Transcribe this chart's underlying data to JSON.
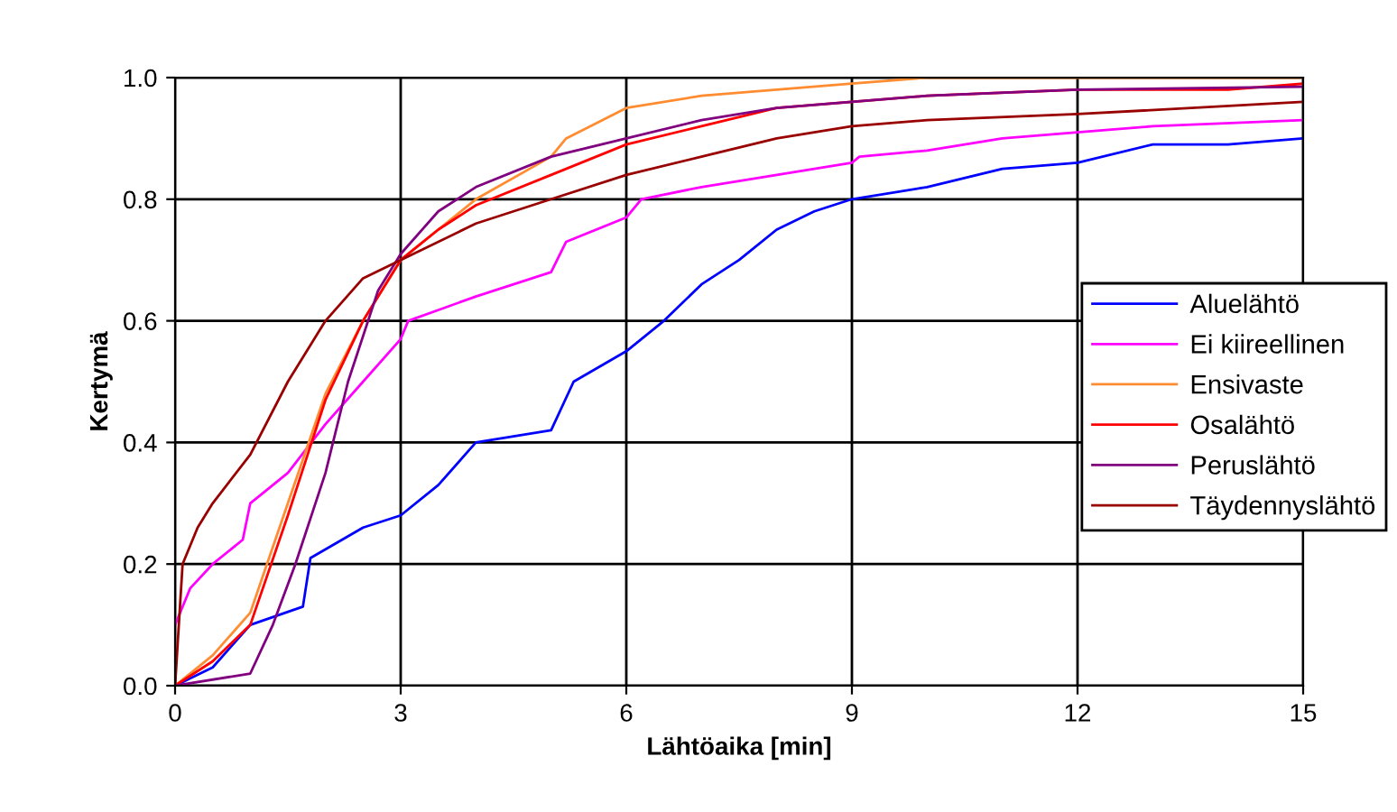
{
  "chart_data": {
    "type": "line",
    "xlabel": "Lähtöaika [min]",
    "ylabel": "Kertymä",
    "xlim": [
      0,
      15
    ],
    "ylim": [
      0,
      1.0
    ],
    "xticks": [
      0,
      3,
      6,
      9,
      12,
      15
    ],
    "yticks": [
      {
        "value": 0,
        "label": "0.0"
      },
      {
        "value": 0.2,
        "label": "0.2"
      },
      {
        "value": 0.4,
        "label": "0.4"
      },
      {
        "value": 0.6,
        "label": "0.6"
      },
      {
        "value": 0.8,
        "label": "0.8"
      },
      {
        "value": 1.0,
        "label": "1.0"
      }
    ],
    "grid": true,
    "legend": "right",
    "line_style": "solid",
    "marker": "none",
    "series": [
      {
        "name": "Aluelähtö",
        "color": "#0000ff",
        "x": [
          0,
          0.5,
          1,
          1.7,
          1.8,
          2.5,
          3,
          3.5,
          4,
          5,
          5.3,
          6,
          6.5,
          7,
          7.5,
          8,
          8.5,
          9,
          10,
          11,
          12,
          13,
          14,
          15
        ],
        "values": [
          0,
          0.03,
          0.1,
          0.13,
          0.21,
          0.26,
          0.28,
          0.33,
          0.4,
          0.42,
          0.5,
          0.55,
          0.6,
          0.66,
          0.7,
          0.75,
          0.78,
          0.8,
          0.82,
          0.85,
          0.86,
          0.89,
          0.89,
          0.9
        ]
      },
      {
        "name": "Ei kiireellinen",
        "color": "#ff00ff",
        "x": [
          0,
          0.2,
          0.5,
          0.9,
          1,
          1.5,
          2,
          2.5,
          3,
          3.1,
          4,
          5,
          5.2,
          6,
          6.2,
          7,
          8,
          9,
          9.1,
          10,
          11,
          12,
          13,
          15
        ],
        "values": [
          0.1,
          0.16,
          0.2,
          0.24,
          0.3,
          0.35,
          0.43,
          0.5,
          0.57,
          0.6,
          0.64,
          0.68,
          0.73,
          0.77,
          0.8,
          0.82,
          0.84,
          0.86,
          0.87,
          0.88,
          0.9,
          0.91,
          0.92,
          0.93
        ]
      },
      {
        "name": "Ensivaste",
        "color": "#ff8c30",
        "x": [
          0,
          0.5,
          1,
          1.5,
          2,
          2.5,
          3,
          3.5,
          4,
          5,
          5.2,
          6,
          7,
          8,
          9,
          10,
          15
        ],
        "values": [
          0,
          0.05,
          0.12,
          0.3,
          0.48,
          0.6,
          0.7,
          0.75,
          0.8,
          0.87,
          0.9,
          0.95,
          0.97,
          0.98,
          0.99,
          1.0,
          1.0
        ]
      },
      {
        "name": "Osalähtö",
        "color": "#ff0000",
        "x": [
          0,
          0.5,
          1,
          1.5,
          2,
          2.5,
          3,
          3.5,
          4,
          5,
          6,
          7,
          8,
          9,
          10,
          12,
          14,
          15
        ],
        "values": [
          0,
          0.04,
          0.1,
          0.28,
          0.47,
          0.6,
          0.7,
          0.75,
          0.79,
          0.84,
          0.89,
          0.92,
          0.95,
          0.96,
          0.97,
          0.98,
          0.98,
          0.99
        ]
      },
      {
        "name": "Peruslähtö",
        "color": "#800080",
        "x": [
          0,
          1,
          1.3,
          1.6,
          2,
          2.3,
          2.7,
          3,
          3.5,
          4,
          5,
          6,
          7,
          8,
          9,
          10,
          12,
          15
        ],
        "values": [
          0,
          0.02,
          0.1,
          0.2,
          0.35,
          0.5,
          0.65,
          0.71,
          0.78,
          0.82,
          0.87,
          0.9,
          0.93,
          0.95,
          0.96,
          0.97,
          0.98,
          0.985
        ]
      },
      {
        "name": "Täydennyslähtö",
        "color": "#990000",
        "x": [
          0,
          0.1,
          0.3,
          0.5,
          1,
          1.5,
          2,
          2.5,
          3,
          4,
          5,
          6,
          7,
          8,
          9,
          10,
          12,
          15
        ],
        "values": [
          0,
          0.2,
          0.26,
          0.3,
          0.38,
          0.5,
          0.6,
          0.67,
          0.7,
          0.76,
          0.8,
          0.84,
          0.87,
          0.9,
          0.92,
          0.93,
          0.94,
          0.96
        ]
      }
    ]
  }
}
